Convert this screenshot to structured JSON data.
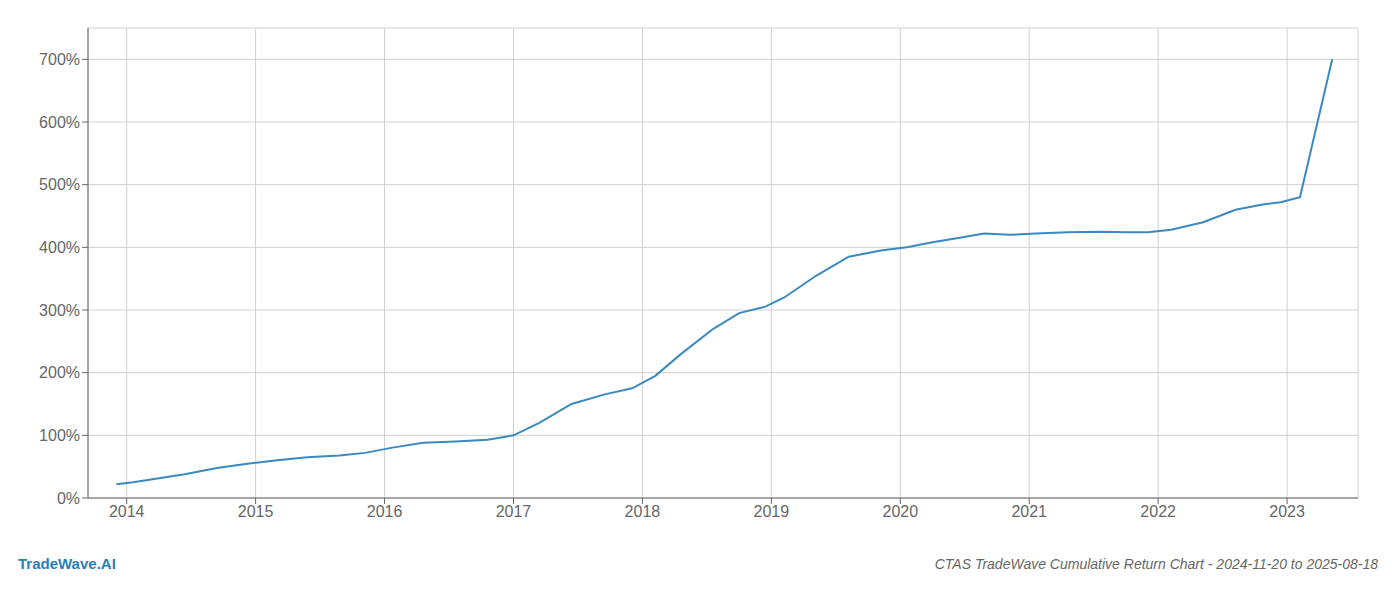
{
  "chart_data": {
    "type": "line",
    "title": "CTAS TradeWave Cumulative Return Chart - 2024-11-20 to 2025-08-18",
    "annotations": [
      "TradeWave.AI"
    ],
    "color": "#3a8abf",
    "grid": true,
    "x": [
      2013.92,
      2014.05,
      2014.2,
      2014.45,
      2014.7,
      2014.95,
      2015.15,
      2015.4,
      2015.65,
      2015.85,
      2016.05,
      2016.3,
      2016.55,
      2016.8,
      2017.0,
      2017.2,
      2017.45,
      2017.7,
      2017.92,
      2018.1,
      2018.3,
      2018.55,
      2018.75,
      2018.95,
      2019.1,
      2019.35,
      2019.6,
      2019.85,
      2020.05,
      2020.25,
      2020.45,
      2020.65,
      2020.85,
      2021.05,
      2021.3,
      2021.55,
      2021.75,
      2021.92,
      2022.1,
      2022.35,
      2022.6,
      2022.8,
      2022.95,
      2023.1,
      2023.35
    ],
    "values": [
      22,
      25,
      30,
      38,
      48,
      55,
      60,
      65,
      68,
      72,
      80,
      88,
      90,
      93,
      100,
      120,
      150,
      165,
      175,
      195,
      230,
      270,
      295,
      305,
      320,
      355,
      385,
      395,
      400,
      408,
      415,
      422,
      420,
      422,
      424,
      425,
      424,
      424,
      428,
      440,
      460,
      468,
      472,
      480,
      700
    ],
    "xlim": [
      2013.7,
      2023.55
    ],
    "xticks": [
      2014,
      2015,
      2016,
      2017,
      2018,
      2019,
      2020,
      2021,
      2022,
      2023
    ],
    "ylim": [
      0,
      750
    ],
    "yticks": [
      {
        "value": 0,
        "label": "0%"
      },
      {
        "value": 100,
        "label": "100%"
      },
      {
        "value": 200,
        "label": "200%"
      },
      {
        "value": 300,
        "label": "300%"
      },
      {
        "value": 400,
        "label": "400%"
      },
      {
        "value": 500,
        "label": "500%"
      },
      {
        "value": 600,
        "label": "600%"
      },
      {
        "value": 700,
        "label": "700%"
      }
    ]
  }
}
